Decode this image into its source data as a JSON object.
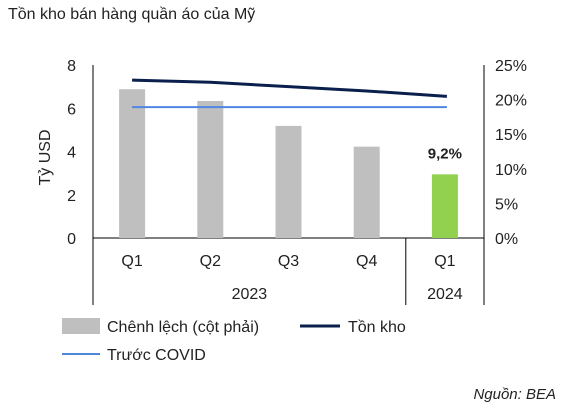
{
  "chart_data": {
    "type": "bar",
    "title": "Tồn kho bán hàng quần áo của Mỹ",
    "ylabel": "Tỷ USD",
    "left_axis": {
      "ticks": [
        "0",
        "2",
        "4",
        "6",
        "8"
      ],
      "ylim": [
        0,
        8
      ]
    },
    "right_axis": {
      "ticks": [
        "0%",
        "5%",
        "10%",
        "15%",
        "20%",
        "25%"
      ],
      "ylim": [
        0,
        25
      ]
    },
    "categories": [
      "Q1",
      "Q2",
      "Q3",
      "Q4",
      "Q1"
    ],
    "year_groups": [
      {
        "label": "2023",
        "span": [
          0,
          3
        ]
      },
      {
        "label": "2024",
        "span": [
          4,
          4
        ]
      }
    ],
    "series": [
      {
        "name": "Chênh lệch (cột phải)",
        "kind": "bar",
        "axis": "right",
        "values": [
          21.5,
          19.8,
          16.2,
          13.2,
          9.2
        ],
        "highlight_index": 4,
        "color": "#bfbfbf",
        "highlight_color": "#92d050"
      },
      {
        "name": "Tồn kho",
        "kind": "line",
        "axis": "left",
        "values": [
          7.3,
          7.2,
          7.0,
          6.8,
          6.55
        ],
        "color": "#0b1f4d"
      },
      {
        "name": "Trước COVID",
        "kind": "line",
        "axis": "left",
        "values": [
          6.05,
          6.05,
          6.05,
          6.05,
          6.05
        ],
        "color": "#4f86e0"
      }
    ],
    "annotation": {
      "text": "9,2%",
      "index": 4
    },
    "legend_position": "bottom-left"
  },
  "source": "Nguồn: BEA"
}
